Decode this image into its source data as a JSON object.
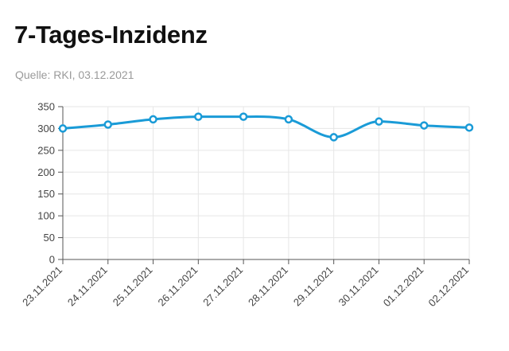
{
  "header": {
    "title": "7-Tages-Inzidenz",
    "subtitle": "Quelle: RKI, 03.12.2021"
  },
  "chart_data": {
    "type": "line",
    "title": "7-Tages-Inzidenz",
    "xlabel": "",
    "ylabel": "",
    "categories": [
      "23.11.2021",
      "24.11.2021",
      "25.11.2021",
      "26.11.2021",
      "27.11.2021",
      "28.11.2021",
      "29.11.2021",
      "30.11.2021",
      "01.12.2021",
      "02.12.2021"
    ],
    "series": [
      {
        "values": [
          300,
          309,
          321,
          327,
          327,
          321,
          280,
          316,
          307,
          302
        ],
        "color": "#1a9bd7"
      }
    ],
    "ylim": [
      0,
      350
    ],
    "yticks": [
      0,
      50,
      100,
      150,
      200,
      250,
      300,
      350
    ],
    "grid": true,
    "smooth": true
  }
}
